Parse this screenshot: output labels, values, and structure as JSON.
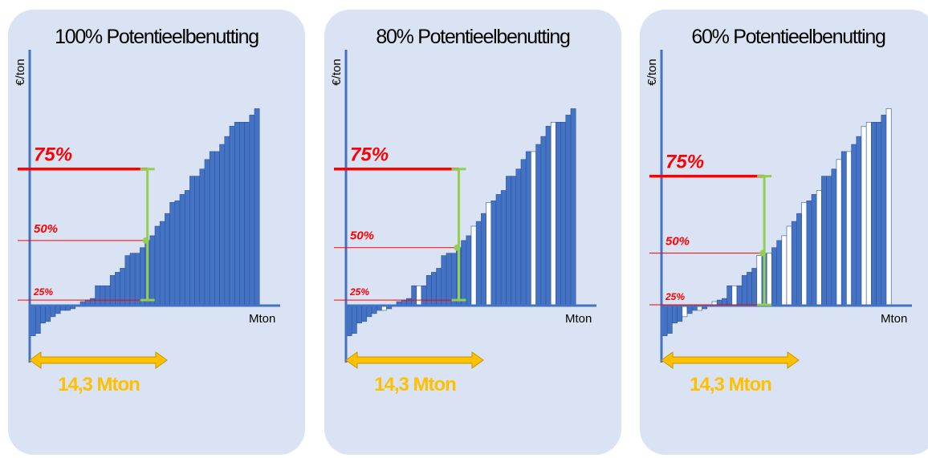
{
  "chart_data": [
    {
      "type": "bar",
      "title": "100% Potentieelbenutting",
      "ylabel": "€/ton",
      "xlabel": "Mton",
      "range_label": "14,3 Mton",
      "percentile_labels": [
        "75%",
        "50%",
        "25%"
      ],
      "colors": {
        "bar": "#4472c4",
        "axis": "#4472c4",
        "p75": "#ff0000",
        "range_bar": "#92d050",
        "arrow": "#ffc000"
      },
      "values": [
        -38,
        -35,
        -22,
        -20,
        -14,
        -10,
        -6,
        -6,
        -4,
        1,
        5,
        7,
        9,
        25,
        25,
        25,
        38,
        42,
        47,
        63,
        66,
        66,
        73,
        82,
        88,
        100,
        106,
        116,
        130,
        132,
        140,
        145,
        163,
        163,
        172,
        184,
        194,
        194,
        203,
        213,
        226,
        231,
        231,
        231,
        240,
        248
      ],
      "unused": [
        false,
        false,
        false,
        false,
        false,
        false,
        false,
        false,
        false,
        false,
        false,
        false,
        false,
        false,
        false,
        false,
        false,
        false,
        false,
        false,
        false,
        false,
        false,
        false,
        false,
        false,
        false,
        false,
        false,
        false,
        false,
        false,
        false,
        false,
        false,
        false,
        false,
        false,
        false,
        false,
        false,
        false,
        false,
        false,
        false,
        false
      ]
    },
    {
      "type": "bar",
      "title": "80% Potentieelbenutting",
      "ylabel": "€/ton",
      "xlabel": "Mton",
      "range_label": "14,3 Mton",
      "percentile_labels": [
        "75%",
        "50%",
        "25%"
      ],
      "colors": {
        "bar": "#4472c4",
        "axis": "#4472c4",
        "p75": "#ff0000",
        "range_bar": "#92d050",
        "arrow": "#ffc000"
      },
      "values": [
        -38,
        -35,
        -22,
        -20,
        -14,
        -10,
        -6,
        -6,
        -4,
        1,
        5,
        7,
        9,
        25,
        25,
        25,
        38,
        42,
        47,
        63,
        66,
        66,
        73,
        82,
        88,
        100,
        106,
        116,
        130,
        132,
        140,
        145,
        163,
        163,
        172,
        184,
        194,
        194,
        203,
        213,
        226,
        231,
        231,
        231,
        240,
        248
      ],
      "unused": [
        false,
        false,
        false,
        false,
        false,
        false,
        false,
        true,
        false,
        false,
        false,
        false,
        false,
        false,
        true,
        false,
        false,
        false,
        false,
        false,
        false,
        false,
        false,
        false,
        false,
        true,
        false,
        false,
        true,
        false,
        false,
        false,
        false,
        false,
        false,
        false,
        false,
        true,
        false,
        false,
        false,
        true,
        false,
        false,
        false,
        false
      ]
    },
    {
      "type": "bar",
      "title": "60% Potentieelbenutting",
      "ylabel": "€/ton",
      "xlabel": "Mton",
      "range_label": "14,3 Mton",
      "percentile_labels": [
        "75%",
        "50%",
        "25%"
      ],
      "colors": {
        "bar": "#4472c4",
        "axis": "#4472c4",
        "p75": "#ff0000",
        "range_bar": "#92d050",
        "arrow": "#ffc000"
      },
      "values": [
        -38,
        -35,
        -22,
        -20,
        -14,
        -10,
        -6,
        -6,
        -4,
        1,
        5,
        7,
        9,
        25,
        25,
        25,
        38,
        42,
        47,
        63,
        66,
        66,
        73,
        82,
        88,
        100,
        106,
        116,
        130,
        132,
        140,
        145,
        163,
        163,
        172,
        184,
        194,
        194,
        203,
        213,
        226,
        231,
        231,
        231,
        240,
        248
      ],
      "unused": [
        false,
        false,
        false,
        false,
        true,
        false,
        false,
        true,
        false,
        false,
        true,
        false,
        false,
        false,
        true,
        false,
        false,
        false,
        false,
        true,
        false,
        true,
        false,
        false,
        true,
        true,
        false,
        false,
        true,
        false,
        false,
        true,
        false,
        false,
        false,
        true,
        false,
        true,
        false,
        false,
        true,
        true,
        false,
        false,
        false,
        true
      ]
    }
  ]
}
